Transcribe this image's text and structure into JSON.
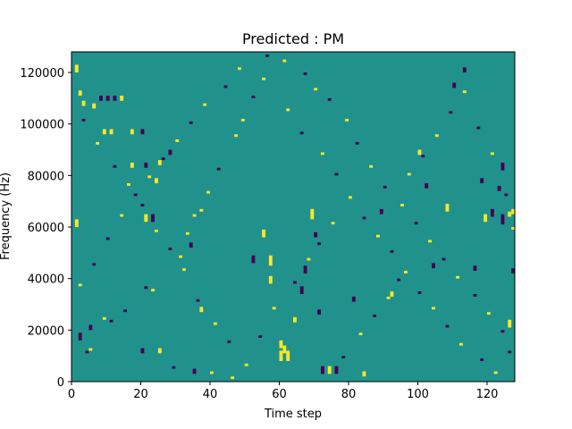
{
  "chart_data": {
    "type": "heatmap",
    "title": "Predicted : PM",
    "xlabel": "Time step",
    "ylabel": "Frequency (Hz)",
    "xlim": [
      0,
      128
    ],
    "ylim": [
      0,
      128000
    ],
    "xticks": [
      0,
      20,
      40,
      60,
      80,
      100,
      120
    ],
    "xtick_labels": [
      "0",
      "20",
      "40",
      "60",
      "80",
      "100",
      "120"
    ],
    "yticks": [
      0,
      20000,
      40000,
      60000,
      80000,
      100000,
      120000
    ],
    "ytick_labels": [
      "0",
      "20000",
      "40000",
      "60000",
      "80000",
      "100000",
      "120000"
    ],
    "n_bins": 128,
    "bin_height_hz": 1000,
    "grid": false,
    "colormap": {
      "background": "#21918c",
      "high": "#fde725",
      "low": "#440154"
    },
    "cells": [
      {
        "t": 29,
        "f": 5000,
        "v": "low",
        "n": 1
      },
      {
        "t": 40,
        "f": 3000,
        "v": "high",
        "n": 1
      },
      {
        "t": 46,
        "f": 1000,
        "v": "high",
        "n": 1
      },
      {
        "t": 4,
        "f": 11000,
        "v": "low",
        "n": 1
      },
      {
        "t": 5,
        "f": 12000,
        "v": "high",
        "n": 1
      },
      {
        "t": 9,
        "f": 24000,
        "v": "high",
        "n": 1
      },
      {
        "t": 11,
        "f": 23000,
        "v": "low",
        "n": 1
      },
      {
        "t": 15,
        "f": 27000,
        "v": "low",
        "n": 1
      },
      {
        "t": 21,
        "f": 36000,
        "v": "low",
        "n": 1
      },
      {
        "t": 23,
        "f": 35000,
        "v": "high",
        "n": 1
      },
      {
        "t": 31,
        "f": 48000,
        "v": "high",
        "n": 1
      },
      {
        "t": 33,
        "f": 57000,
        "v": "high",
        "n": 1
      },
      {
        "t": 35,
        "f": 64000,
        "v": "high",
        "n": 1
      },
      {
        "t": 37,
        "f": 66000,
        "v": "high",
        "n": 1
      },
      {
        "t": 39,
        "f": 73000,
        "v": "high",
        "n": 1
      },
      {
        "t": 42,
        "f": 82000,
        "v": "low",
        "n": 1
      },
      {
        "t": 47,
        "f": 95000,
        "v": "high",
        "n": 1
      },
      {
        "t": 49,
        "f": 101000,
        "v": "high",
        "n": 1
      },
      {
        "t": 52,
        "f": 110000,
        "v": "low",
        "n": 1
      },
      {
        "t": 55,
        "f": 117000,
        "v": "high",
        "n": 1
      },
      {
        "t": 61,
        "f": 124000,
        "v": "high",
        "n": 1
      },
      {
        "t": 67,
        "f": 119000,
        "v": "low",
        "n": 1
      },
      {
        "t": 70,
        "f": 113000,
        "v": "high",
        "n": 1
      },
      {
        "t": 74,
        "f": 109000,
        "v": "low",
        "n": 1
      },
      {
        "t": 79,
        "f": 101000,
        "v": "high",
        "n": 1
      },
      {
        "t": 82,
        "f": 92000,
        "v": "low",
        "n": 1
      },
      {
        "t": 86,
        "f": 83000,
        "v": "high",
        "n": 1
      },
      {
        "t": 90,
        "f": 75000,
        "v": "low",
        "n": 1
      },
      {
        "t": 95,
        "f": 68000,
        "v": "high",
        "n": 1
      },
      {
        "t": 99,
        "f": 61000,
        "v": "low",
        "n": 1
      },
      {
        "t": 103,
        "f": 54000,
        "v": "high",
        "n": 1
      },
      {
        "t": 107,
        "f": 47000,
        "v": "low",
        "n": 1
      },
      {
        "t": 111,
        "f": 40000,
        "v": "high",
        "n": 1
      },
      {
        "t": 116,
        "f": 33000,
        "v": "low",
        "n": 1
      },
      {
        "t": 120,
        "f": 26000,
        "v": "high",
        "n": 1
      },
      {
        "t": 124,
        "f": 19000,
        "v": "low",
        "n": 1
      },
      {
        "t": 2,
        "f": 37000,
        "v": "high",
        "n": 1
      },
      {
        "t": 6,
        "f": 45000,
        "v": "low",
        "n": 1
      },
      {
        "t": 10,
        "f": 55000,
        "v": "low",
        "n": 1
      },
      {
        "t": 14,
        "f": 64000,
        "v": "high",
        "n": 1
      },
      {
        "t": 18,
        "f": 72000,
        "v": "low",
        "n": 1
      },
      {
        "t": 22,
        "f": 79000,
        "v": "high",
        "n": 1
      },
      {
        "t": 26,
        "f": 86000,
        "v": "low",
        "n": 1
      },
      {
        "t": 30,
        "f": 93000,
        "v": "high",
        "n": 1
      },
      {
        "t": 34,
        "f": 100000,
        "v": "low",
        "n": 1
      },
      {
        "t": 38,
        "f": 107000,
        "v": "high",
        "n": 1
      },
      {
        "t": 44,
        "f": 114000,
        "v": "low",
        "n": 1
      },
      {
        "t": 48,
        "f": 121000,
        "v": "high",
        "n": 1
      },
      {
        "t": 56,
        "f": 126000,
        "v": "low",
        "n": 1
      },
      {
        "t": 62,
        "f": 105000,
        "v": "high",
        "n": 1
      },
      {
        "t": 66,
        "f": 96000,
        "v": "low",
        "n": 1
      },
      {
        "t": 72,
        "f": 88000,
        "v": "high",
        "n": 1
      },
      {
        "t": 76,
        "f": 80000,
        "v": "low",
        "n": 1
      },
      {
        "t": 80,
        "f": 71000,
        "v": "high",
        "n": 1
      },
      {
        "t": 84,
        "f": 63000,
        "v": "low",
        "n": 1
      },
      {
        "t": 88,
        "f": 56000,
        "v": "high",
        "n": 1
      },
      {
        "t": 92,
        "f": 50000,
        "v": "low",
        "n": 1
      },
      {
        "t": 96,
        "f": 42000,
        "v": "high",
        "n": 1
      },
      {
        "t": 100,
        "f": 34000,
        "v": "low",
        "n": 1
      },
      {
        "t": 104,
        "f": 28000,
        "v": "high",
        "n": 1
      },
      {
        "t": 108,
        "f": 21000,
        "v": "low",
        "n": 1
      },
      {
        "t": 112,
        "f": 14000,
        "v": "high",
        "n": 1
      },
      {
        "t": 118,
        "f": 8000,
        "v": "low",
        "n": 1
      },
      {
        "t": 122,
        "f": 3000,
        "v": "high",
        "n": 1
      },
      {
        "t": 126,
        "f": 11000,
        "v": "low",
        "n": 1
      },
      {
        "t": 3,
        "f": 101000,
        "v": "low",
        "n": 1
      },
      {
        "t": 7,
        "f": 92000,
        "v": "high",
        "n": 1
      },
      {
        "t": 12,
        "f": 83000,
        "v": "low",
        "n": 1
      },
      {
        "t": 16,
        "f": 76000,
        "v": "high",
        "n": 1
      },
      {
        "t": 20,
        "f": 68000,
        "v": "low",
        "n": 1
      },
      {
        "t": 24,
        "f": 58000,
        "v": "high",
        "n": 1
      },
      {
        "t": 28,
        "f": 51000,
        "v": "low",
        "n": 1
      },
      {
        "t": 32,
        "f": 43000,
        "v": "high",
        "n": 1
      },
      {
        "t": 36,
        "f": 31000,
        "v": "low",
        "n": 1
      },
      {
        "t": 41,
        "f": 22000,
        "v": "high",
        "n": 1
      },
      {
        "t": 45,
        "f": 15000,
        "v": "low",
        "n": 1
      },
      {
        "t": 50,
        "f": 6000,
        "v": "high",
        "n": 1
      },
      {
        "t": 54,
        "f": 17000,
        "v": "low",
        "n": 1
      },
      {
        "t": 58,
        "f": 28000,
        "v": "high",
        "n": 1
      },
      {
        "t": 64,
        "f": 38000,
        "v": "low",
        "n": 1
      },
      {
        "t": 68,
        "f": 47000,
        "v": "high",
        "n": 1
      },
      {
        "t": 71,
        "f": 53000,
        "v": "low",
        "n": 1
      },
      {
        "t": 75,
        "f": 61000,
        "v": "high",
        "n": 1
      },
      {
        "t": 78,
        "f": 9000,
        "v": "low",
        "n": 1
      },
      {
        "t": 83,
        "f": 18000,
        "v": "high",
        "n": 1
      },
      {
        "t": 87,
        "f": 25000,
        "v": "low",
        "n": 1
      },
      {
        "t": 91,
        "f": 32000,
        "v": "high",
        "n": 1
      },
      {
        "t": 94,
        "f": 39000,
        "v": "low",
        "n": 1
      },
      {
        "t": 97,
        "f": 80000,
        "v": "high",
        "n": 1
      },
      {
        "t": 101,
        "f": 87000,
        "v": "low",
        "n": 1
      },
      {
        "t": 105,
        "f": 95000,
        "v": "high",
        "n": 1
      },
      {
        "t": 109,
        "f": 104000,
        "v": "low",
        "n": 1
      },
      {
        "t": 113,
        "f": 112000,
        "v": "high",
        "n": 1
      },
      {
        "t": 117,
        "f": 98000,
        "v": "low",
        "n": 1
      },
      {
        "t": 121,
        "f": 88000,
        "v": "high",
        "n": 1
      },
      {
        "t": 125,
        "f": 72000,
        "v": "low",
        "n": 1
      },
      {
        "t": 127,
        "f": 59000,
        "v": "high",
        "n": 1
      },
      {
        "t": 1,
        "f": 60000,
        "v": "high",
        "n": 3
      },
      {
        "t": 1,
        "f": 120000,
        "v": "high",
        "n": 3
      },
      {
        "t": 2,
        "f": 111000,
        "v": "high",
        "n": 2
      },
      {
        "t": 3,
        "f": 107000,
        "v": "high",
        "n": 2
      },
      {
        "t": 2,
        "f": 16000,
        "v": "low",
        "n": 3
      },
      {
        "t": 5,
        "f": 20000,
        "v": "low",
        "n": 2
      },
      {
        "t": 6,
        "f": 106000,
        "v": "high",
        "n": 2
      },
      {
        "t": 8,
        "f": 109000,
        "v": "low",
        "n": 2
      },
      {
        "t": 10,
        "f": 109000,
        "v": "low",
        "n": 2
      },
      {
        "t": 12,
        "f": 109000,
        "v": "low",
        "n": 2
      },
      {
        "t": 14,
        "f": 109000,
        "v": "high",
        "n": 2
      },
      {
        "t": 9,
        "f": 96000,
        "v": "high",
        "n": 2
      },
      {
        "t": 11,
        "f": 96000,
        "v": "high",
        "n": 2
      },
      {
        "t": 17,
        "f": 96000,
        "v": "high",
        "n": 2
      },
      {
        "t": 20,
        "f": 96000,
        "v": "low",
        "n": 2
      },
      {
        "t": 21,
        "f": 83000,
        "v": "low",
        "n": 2
      },
      {
        "t": 17,
        "f": 83000,
        "v": "high",
        "n": 2
      },
      {
        "t": 25,
        "f": 84000,
        "v": "high",
        "n": 2
      },
      {
        "t": 28,
        "f": 88000,
        "v": "low",
        "n": 2
      },
      {
        "t": 21,
        "f": 62000,
        "v": "high",
        "n": 3
      },
      {
        "t": 23,
        "f": 62000,
        "v": "low",
        "n": 3
      },
      {
        "t": 24,
        "f": 77000,
        "v": "high",
        "n": 2
      },
      {
        "t": 34,
        "f": 52000,
        "v": "low",
        "n": 2
      },
      {
        "t": 37,
        "f": 27000,
        "v": "high",
        "n": 2
      },
      {
        "t": 20,
        "f": 11000,
        "v": "low",
        "n": 2
      },
      {
        "t": 25,
        "f": 11000,
        "v": "high",
        "n": 2
      },
      {
        "t": 35,
        "f": 3000,
        "v": "low",
        "n": 2
      },
      {
        "t": 52,
        "f": 46000,
        "v": "low",
        "n": 3
      },
      {
        "t": 55,
        "f": 56000,
        "v": "high",
        "n": 3
      },
      {
        "t": 57,
        "f": 45000,
        "v": "high",
        "n": 4
      },
      {
        "t": 57,
        "f": 38000,
        "v": "high",
        "n": 3
      },
      {
        "t": 60,
        "f": 13000,
        "v": "high",
        "n": 3
      },
      {
        "t": 60,
        "f": 8000,
        "v": "high",
        "n": 4
      },
      {
        "t": 61,
        "f": 11000,
        "v": "high",
        "n": 3
      },
      {
        "t": 62,
        "f": 8000,
        "v": "high",
        "n": 4
      },
      {
        "t": 64,
        "f": 23000,
        "v": "high",
        "n": 2
      },
      {
        "t": 66,
        "f": 34000,
        "v": "low",
        "n": 3
      },
      {
        "t": 67,
        "f": 42000,
        "v": "low",
        "n": 3
      },
      {
        "t": 69,
        "f": 63000,
        "v": "high",
        "n": 4
      },
      {
        "t": 70,
        "f": 56000,
        "v": "low",
        "n": 2
      },
      {
        "t": 71,
        "f": 26000,
        "v": "low",
        "n": 2
      },
      {
        "t": 72,
        "f": 3000,
        "v": "low",
        "n": 3
      },
      {
        "t": 74,
        "f": 3000,
        "v": "high",
        "n": 3
      },
      {
        "t": 76,
        "f": 3000,
        "v": "low",
        "n": 3
      },
      {
        "t": 81,
        "f": 31000,
        "v": "low",
        "n": 2
      },
      {
        "t": 84,
        "f": 2000,
        "v": "high",
        "n": 2
      },
      {
        "t": 89,
        "f": 65000,
        "v": "low",
        "n": 2
      },
      {
        "t": 92,
        "f": 33000,
        "v": "high",
        "n": 2
      },
      {
        "t": 100,
        "f": 88000,
        "v": "high",
        "n": 2
      },
      {
        "t": 102,
        "f": 75000,
        "v": "low",
        "n": 2
      },
      {
        "t": 104,
        "f": 44000,
        "v": "low",
        "n": 2
      },
      {
        "t": 108,
        "f": 66000,
        "v": "high",
        "n": 3
      },
      {
        "t": 110,
        "f": 114000,
        "v": "low",
        "n": 2
      },
      {
        "t": 113,
        "f": 120000,
        "v": "low",
        "n": 2
      },
      {
        "t": 116,
        "f": 43000,
        "v": "low",
        "n": 2
      },
      {
        "t": 118,
        "f": 77000,
        "v": "low",
        "n": 2
      },
      {
        "t": 119,
        "f": 62000,
        "v": "high",
        "n": 3
      },
      {
        "t": 121,
        "f": 64000,
        "v": "low",
        "n": 3
      },
      {
        "t": 123,
        "f": 74000,
        "v": "low",
        "n": 2
      },
      {
        "t": 124,
        "f": 61000,
        "v": "low",
        "n": 4
      },
      {
        "t": 124,
        "f": 82000,
        "v": "low",
        "n": 3
      },
      {
        "t": 126,
        "f": 64000,
        "v": "high",
        "n": 2
      },
      {
        "t": 127,
        "f": 65000,
        "v": "high",
        "n": 2
      },
      {
        "t": 126,
        "f": 21000,
        "v": "high",
        "n": 3
      },
      {
        "t": 127,
        "f": 42000,
        "v": "low",
        "n": 2
      }
    ]
  }
}
